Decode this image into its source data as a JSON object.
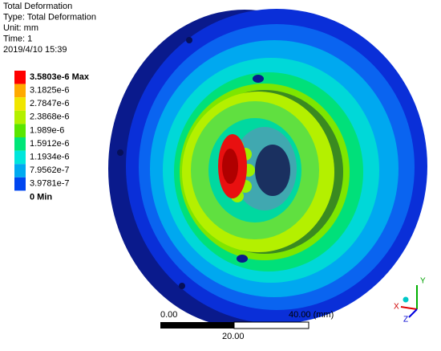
{
  "header": {
    "lines": [
      "Total Deformation",
      "Type: Total Deformation",
      "Unit: mm",
      "Time: 1",
      "2019/4/10 15:39"
    ]
  },
  "legend": {
    "labels": [
      "3.5803e-6 Max",
      "3.1825e-6",
      "2.7847e-6",
      "2.3868e-6",
      "1.989e-6",
      "1.5912e-6",
      "1.1934e-6",
      "7.9562e-7",
      "3.9781e-7",
      "0 Min"
    ],
    "colors": [
      "#ff0000",
      "#ffaa00",
      "#f0e600",
      "#b4f000",
      "#5ae600",
      "#00e678",
      "#00e6dc",
      "#00aaf0",
      "#0046f0"
    ]
  },
  "scale_bar": {
    "start": "0.00",
    "end": "40.00 (mm)",
    "middle": "20.00"
  },
  "triad": {
    "y": "Y",
    "x": "X",
    "z": "Z"
  }
}
